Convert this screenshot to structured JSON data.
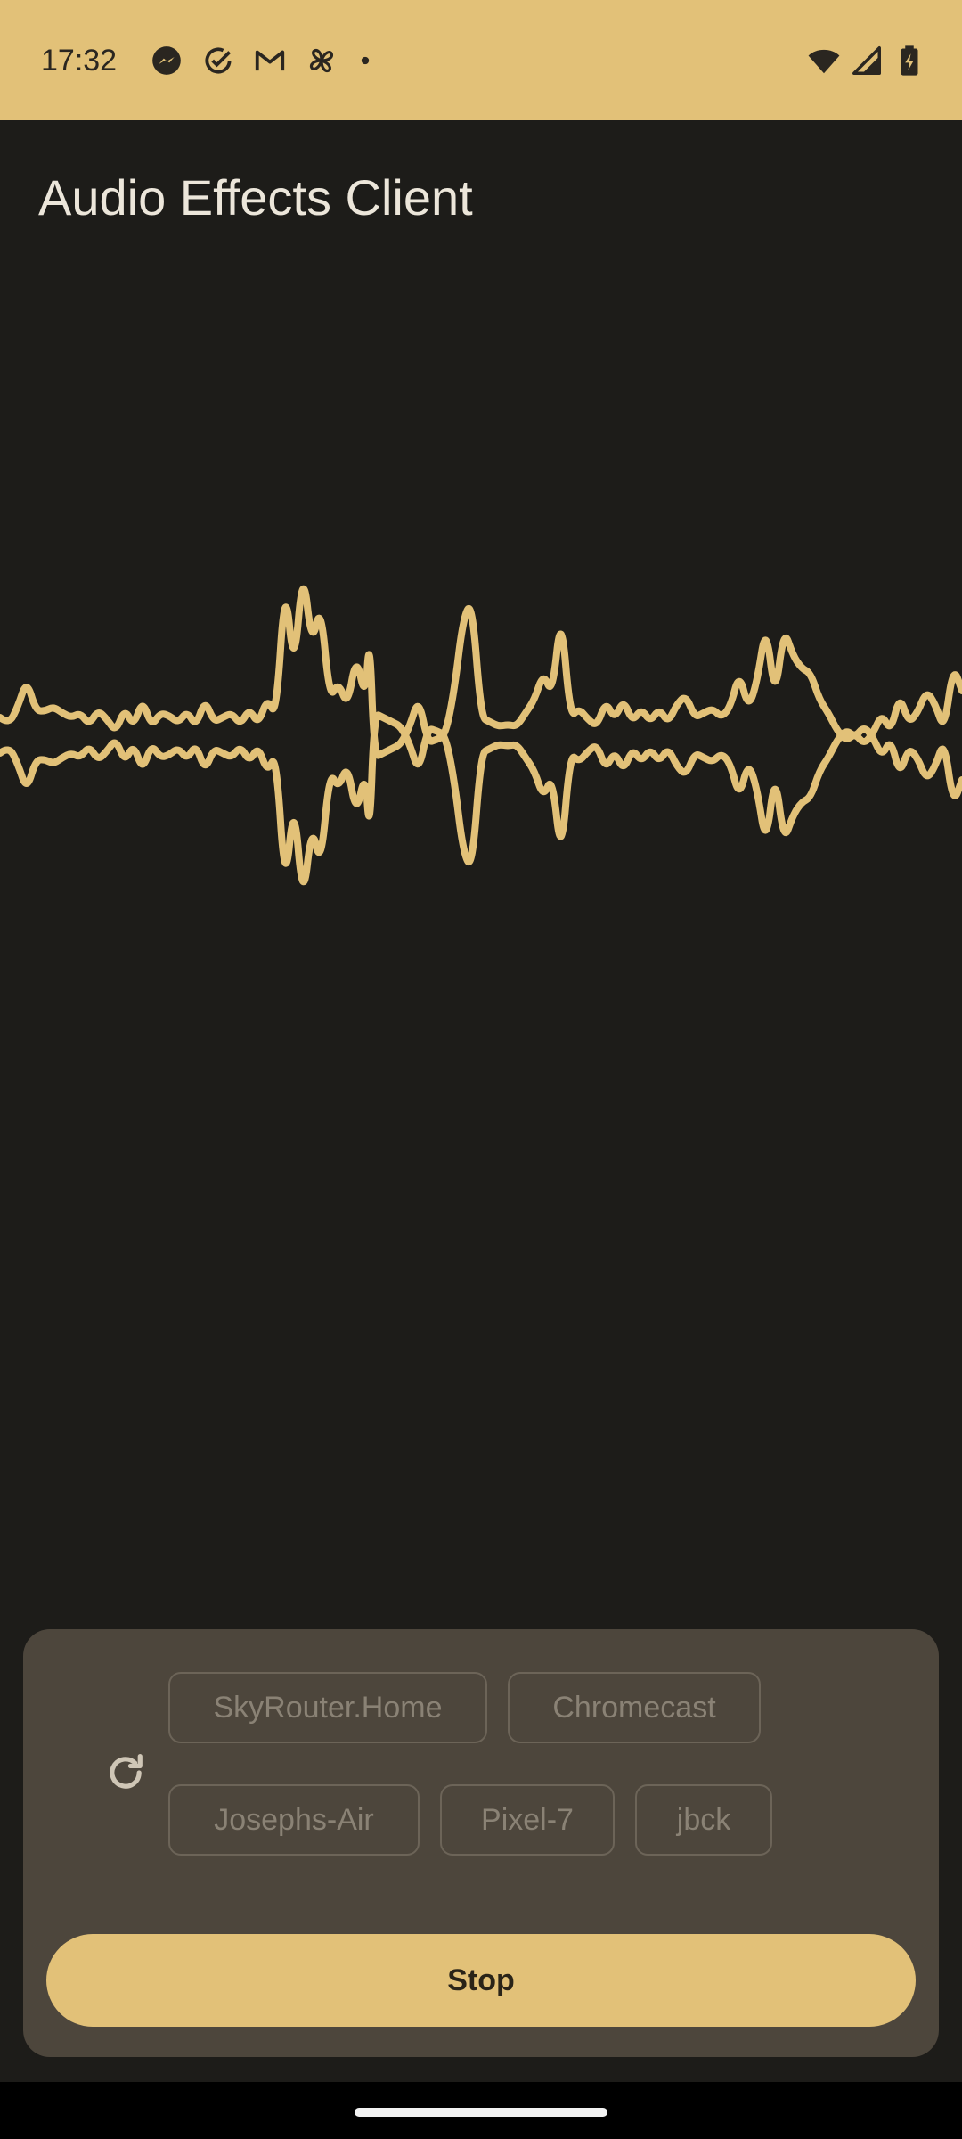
{
  "status_bar": {
    "time": "17:32",
    "notification_icons": [
      "messenger-icon",
      "check-circle-icon",
      "gmail-icon",
      "pinwheel-icon",
      "dot-icon"
    ],
    "system_icons": [
      "wifi-icon",
      "signal-icon",
      "battery-charging-icon"
    ]
  },
  "app": {
    "title": "Audio Effects Client"
  },
  "colors": {
    "accent": "#e2c178",
    "background": "#1d1c19",
    "panel": "#4d463c",
    "chip_border": "#6c6458",
    "chip_text": "#8a8275"
  },
  "devices": {
    "refresh_icon": "refresh-icon",
    "chips": [
      {
        "label": "SkyRouter.Home"
      },
      {
        "label": "Chromecast"
      },
      {
        "label": "Josephs-Air"
      },
      {
        "label": "Pixel-7"
      },
      {
        "label": "jbck"
      }
    ]
  },
  "controls": {
    "stop_label": "Stop"
  }
}
